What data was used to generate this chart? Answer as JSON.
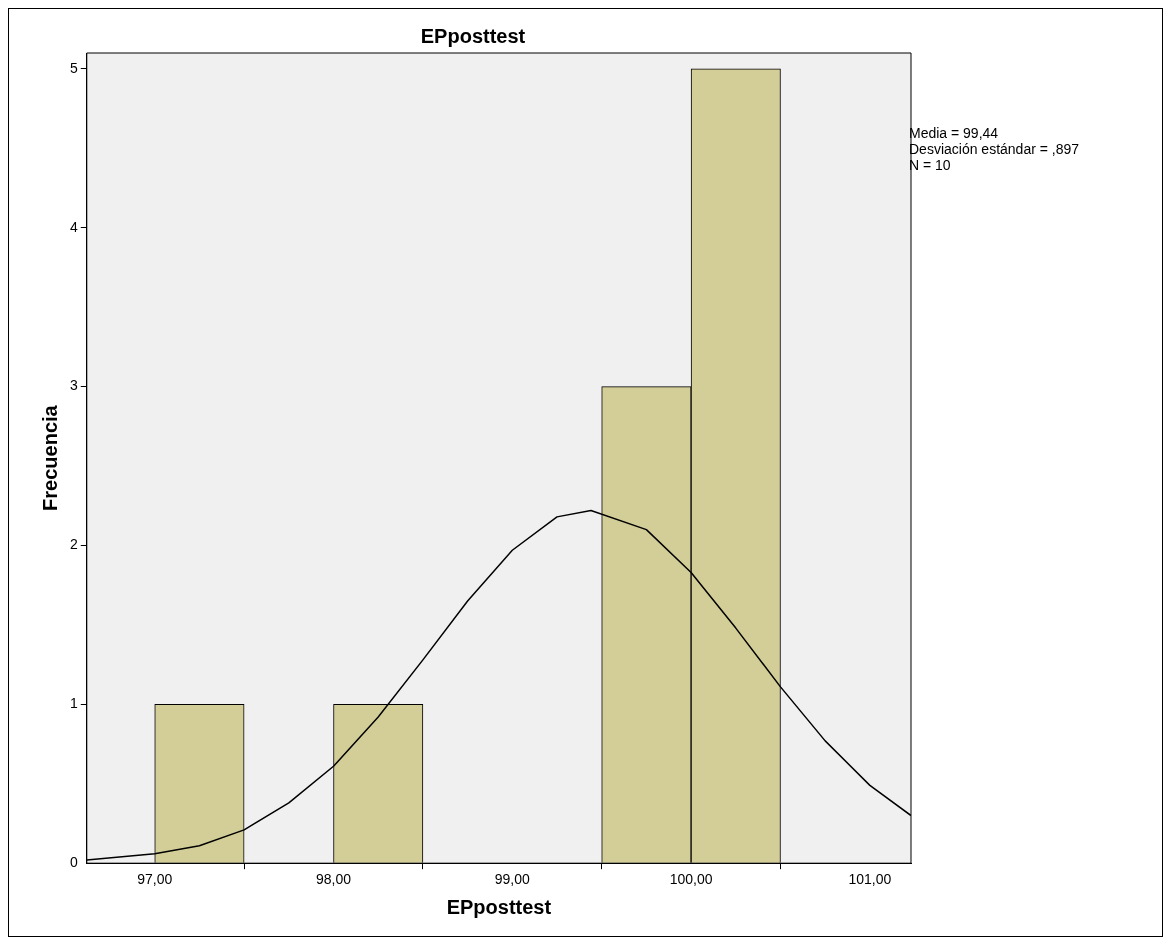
{
  "chart_data": {
    "type": "histogram",
    "title": "EPposttest",
    "xlabel": "EPposttest",
    "ylabel": "Frecuencia",
    "bins": [
      97,
      97.5,
      98,
      98.5,
      99,
      99.5,
      100,
      100.5
    ],
    "values": [
      1,
      0,
      1,
      0,
      0,
      3,
      5
    ],
    "color": "#d3ce97",
    "series": [
      {
        "type": "line",
        "color": "#000000",
        "x": [
          96.62,
          97,
          97.25,
          97.5,
          97.75,
          98,
          98.25,
          98.5,
          98.75,
          99,
          99.25,
          99.44,
          99.75,
          100,
          100.25,
          100.5,
          100.75,
          101,
          101.23
        ],
        "values": [
          0.02,
          0.06,
          0.11,
          0.21,
          0.38,
          0.61,
          0.92,
          1.28,
          1.65,
          1.97,
          2.18,
          2.22,
          2.1,
          1.83,
          1.48,
          1.11,
          0.77,
          0.49,
          0.3
        ]
      }
    ],
    "xlim": [
      96.62,
      101.23
    ],
    "xticks": [
      {
        "value": 97,
        "label": "97,00"
      },
      {
        "value": 98,
        "label": "98,00"
      },
      {
        "value": 99,
        "label": "99,00"
      },
      {
        "value": 100,
        "label": "100,00"
      },
      {
        "value": 101,
        "label": "101,00"
      }
    ],
    "ylim": [
      0,
      5.1
    ],
    "yticks": [
      0,
      1,
      2,
      3,
      4,
      5
    ],
    "grid": false,
    "annotations": [
      "Media = 99,44",
      "Desviación estándar = ,897",
      "N = 10"
    ]
  }
}
